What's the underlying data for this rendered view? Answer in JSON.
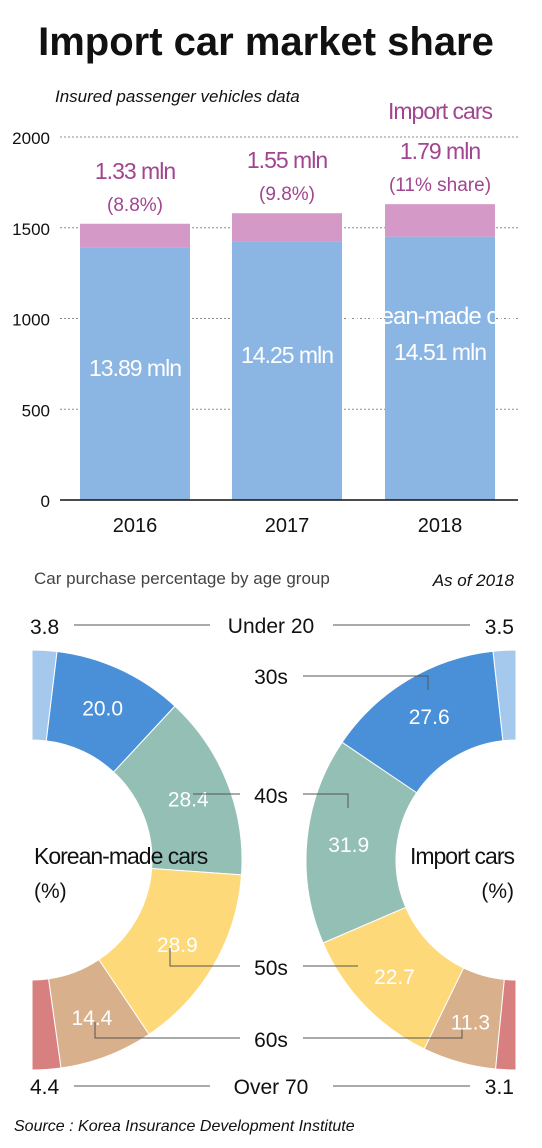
{
  "title": "Import car market share",
  "chart_data": [
    {
      "type": "bar",
      "stacked": true,
      "subtitle": "Insured passenger vehicles data",
      "categories": [
        "2016",
        "2017",
        "2018"
      ],
      "ylim": [
        0,
        2000
      ],
      "yticks": [
        "0",
        "500",
        "1000",
        "1500",
        "2000"
      ],
      "grid": true,
      "series": [
        {
          "name": "Korean-made cars",
          "values": [
            1389,
            1425,
            1451
          ],
          "labels": [
            "13.89 mln",
            "14.25 mln",
            "14.51 mln"
          ],
          "color": "#8bb6e3"
        },
        {
          "name": "Import cars",
          "values": [
            133,
            155,
            179
          ],
          "labels": [
            "1.33 mln",
            "1.55 mln",
            "1.79 mln"
          ],
          "shares": [
            "(8.8%)",
            "(9.8%)",
            "(11% share)"
          ],
          "color": "#d499c6"
        }
      ],
      "label_color": "#a0458f"
    },
    {
      "type": "pie",
      "subtitle": "Car purchase percentage by age group",
      "note": "As of 2018",
      "categories": [
        "Under 20",
        "30s",
        "40s",
        "50s",
        "60s",
        "Over 70"
      ],
      "colors": [
        "#a5c8ed",
        "#4a90d9",
        "#93bfb4",
        "#fed97a",
        "#d9b08c",
        "#d87f80"
      ],
      "charts": [
        {
          "name": "Korean-made cars",
          "unit": "(%)",
          "values": [
            3.8,
            20.0,
            28.4,
            28.9,
            14.4,
            4.4
          ],
          "labels": [
            "3.8",
            "20.0",
            "28.4",
            "28.9",
            "14.4",
            "4.4"
          ]
        },
        {
          "name": "Import cars",
          "unit": "(%)",
          "values": [
            3.5,
            27.6,
            31.9,
            22.7,
            11.3,
            3.1
          ],
          "labels": [
            "3.5",
            "27.6",
            "31.9",
            "22.7",
            "11.3",
            "3.1"
          ]
        }
      ]
    }
  ],
  "source": "Source : Korea Insurance Development Institute"
}
